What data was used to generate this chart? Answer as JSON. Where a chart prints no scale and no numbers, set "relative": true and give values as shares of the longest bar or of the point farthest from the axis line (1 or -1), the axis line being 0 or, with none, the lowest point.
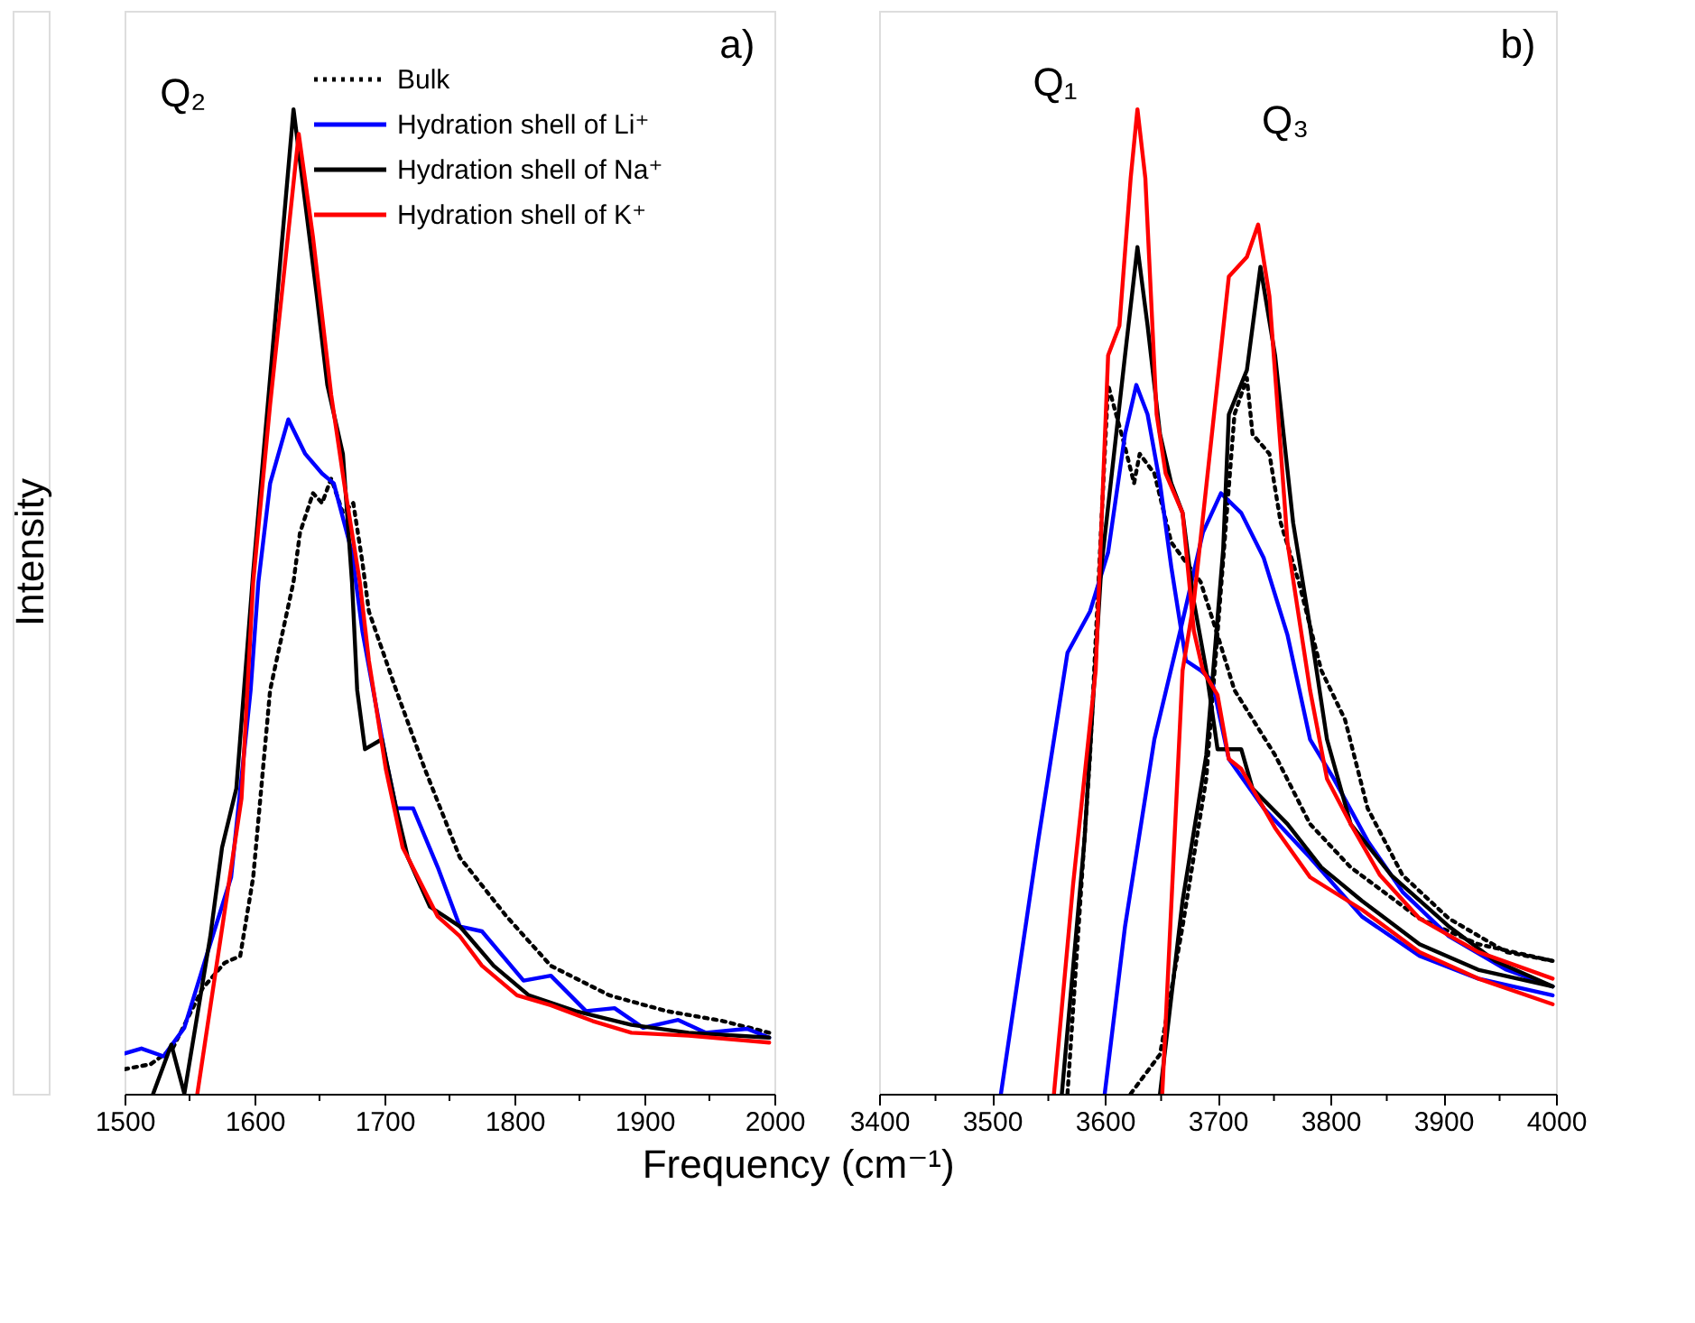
{
  "chart_data": [
    {
      "type": "line",
      "relative": true,
      "ylabel": "Intensity",
      "tick_labels": "x",
      "legend": "top right",
      "xlim": [
        1500,
        2000
      ],
      "xticks": [
        1500,
        {
          "value": 1550,
          "label": null
        },
        1600,
        {
          "value": 1650,
          "label": null
        },
        1700,
        {
          "value": 1750,
          "label": null
        },
        1800,
        {
          "value": 1850,
          "label": null
        },
        1900,
        {
          "value": 1950,
          "label": null
        },
        2000
      ],
      "annotations": [
        "a)",
        "Q₂"
      ],
      "series": [
        {
          "name": "Bulk",
          "color": "#000000",
          "line_style": "dotted",
          "x": [
            1500,
            1520,
            1537,
            1560,
            1577,
            1589,
            1599,
            1612,
            1630,
            1635,
            1645,
            1652,
            1659,
            1668,
            1676,
            1683,
            1688,
            1709,
            1731,
            1758,
            1794,
            1828,
            1873,
            1917,
            1960,
            1996
          ],
          "values": [
            0.025,
            0.03,
            0.046,
            0.107,
            0.133,
            0.14,
            0.22,
            0.41,
            0.52,
            0.57,
            0.61,
            0.6,
            0.625,
            0.59,
            0.6,
            0.54,
            0.49,
            0.41,
            0.33,
            0.24,
            0.18,
            0.13,
            0.1,
            0.084,
            0.074,
            0.062
          ]
        },
        {
          "name": "Hydration shell of Li⁺",
          "color": "#0000ff",
          "line_style": "solid",
          "x": [
            1500,
            1513,
            1530,
            1546,
            1563,
            1582,
            1597,
            1603,
            1612,
            1626,
            1639,
            1652,
            1661,
            1675,
            1683,
            1701,
            1709,
            1722,
            1741,
            1758,
            1775,
            1807,
            1828,
            1855,
            1877,
            1899,
            1926,
            1947,
            1979,
            1996
          ],
          "values": [
            0.041,
            0.046,
            0.038,
            0.067,
            0.14,
            0.22,
            0.41,
            0.52,
            0.62,
            0.685,
            0.65,
            0.63,
            0.62,
            0.55,
            0.47,
            0.34,
            0.29,
            0.29,
            0.23,
            0.17,
            0.165,
            0.115,
            0.12,
            0.084,
            0.087,
            0.067,
            0.075,
            0.062,
            0.066,
            0.057
          ]
        },
        {
          "name": "Hydration shell of Na⁺",
          "color": "#000000",
          "line_style": "solid",
          "x": [
            1522,
            1536,
            1546,
            1566,
            1575,
            1586,
            1599,
            1630,
            1648,
            1656,
            1668,
            1675,
            1679,
            1685,
            1698,
            1709,
            1718,
            1735,
            1758,
            1784,
            1811,
            1847,
            1890,
            1934,
            1996
          ],
          "values": [
            0,
            0.05,
            0,
            0.16,
            0.25,
            0.31,
            0.53,
            1.0,
            0.81,
            0.72,
            0.65,
            0.52,
            0.41,
            0.35,
            0.36,
            0.29,
            0.24,
            0.19,
            0.17,
            0.13,
            0.1,
            0.084,
            0.07,
            0.062,
            0.057
          ]
        },
        {
          "name": "Hydration shell of K⁺",
          "color": "#ff0000",
          "line_style": "solid",
          "x": [
            1556,
            1573,
            1590,
            1599,
            1612,
            1634,
            1645,
            1659,
            1669,
            1681,
            1688,
            1701,
            1714,
            1718,
            1741,
            1758,
            1775,
            1802,
            1828,
            1860,
            1890,
            1934,
            1996
          ],
          "values": [
            0,
            0.15,
            0.3,
            0.52,
            0.7,
            0.975,
            0.87,
            0.71,
            0.62,
            0.52,
            0.44,
            0.33,
            0.25,
            0.24,
            0.18,
            0.16,
            0.13,
            0.1,
            0.09,
            0.074,
            0.062,
            0.059,
            0.052
          ]
        }
      ]
    },
    {
      "type": "line",
      "relative": true,
      "xlabel": "Frequency (cm⁻¹)",
      "tick_labels": "x",
      "xlim": [
        3400,
        4000
      ],
      "xticks": [
        3400,
        {
          "value": 3450,
          "label": null
        },
        3500,
        {
          "value": 3550,
          "label": null
        },
        3600,
        {
          "value": 3650,
          "label": null
        },
        3700,
        {
          "value": 3750,
          "label": null
        },
        3800,
        {
          "value": 3850,
          "label": null
        },
        3900,
        {
          "value": 3950,
          "label": null
        },
        4000
      ],
      "annotations": [
        "b)",
        "Q₁",
        "Q₃"
      ],
      "series": [
        {
          "color": "#000000",
          "line_style": "dotted",
          "x": [
            3567,
            3587,
            3603,
            3618,
            3626,
            3631,
            3644,
            3659,
            3685,
            3700,
            3715,
            3751,
            3782,
            3818,
            3879,
            3931,
            3997
          ],
          "values": [
            0,
            0.344,
            0.72,
            0.657,
            0.62,
            0.65,
            0.63,
            0.56,
            0.52,
            0.466,
            0.41,
            0.344,
            0.274,
            0.23,
            0.178,
            0.152,
            0.135
          ]
        },
        {
          "color": "#000000",
          "line_style": "dotted",
          "x": [
            3623,
            3649,
            3669,
            3690,
            3715,
            3726,
            3731,
            3746,
            3756,
            3772,
            3792,
            3813,
            3833,
            3864,
            3905,
            3956,
            3997
          ],
          "values": [
            0,
            0.04,
            0.17,
            0.32,
            0.69,
            0.727,
            0.67,
            0.65,
            0.58,
            0.52,
            0.43,
            0.38,
            0.29,
            0.222,
            0.178,
            0.144,
            0.135
          ]
        },
        {
          "color": "#0000ff",
          "line_style": "solid",
          "x": [
            3508,
            3541,
            3567,
            3587,
            3603,
            3618,
            3628,
            3638,
            3649,
            3659,
            3672,
            3685,
            3695,
            3710,
            3741,
            3782,
            3828,
            3879,
            3931,
            3997
          ],
          "values": [
            0,
            0.257,
            0.448,
            0.49,
            0.55,
            0.67,
            0.72,
            0.69,
            0.62,
            0.535,
            0.44,
            0.43,
            0.42,
            0.34,
            0.29,
            0.24,
            0.18,
            0.14,
            0.117,
            0.1
          ]
        },
        {
          "color": "#0000ff",
          "line_style": "solid",
          "x": [
            3600,
            3618,
            3644,
            3669,
            3687,
            3703,
            3721,
            3741,
            3762,
            3782,
            3803,
            3833,
            3864,
            3905,
            3956,
            3997
          ],
          "values": [
            0,
            0.17,
            0.36,
            0.48,
            0.57,
            0.61,
            0.59,
            0.544,
            0.466,
            0.36,
            0.32,
            0.257,
            0.205,
            0.16,
            0.126,
            0.109
          ]
        },
        {
          "color": "#000000",
          "line_style": "solid",
          "x": [
            3562,
            3582,
            3597,
            3618,
            3629,
            3638,
            3649,
            3659,
            3669,
            3679,
            3690,
            3700,
            3721,
            3731,
            3762,
            3792,
            3828,
            3879,
            3931,
            3997
          ],
          "values": [
            0,
            0.257,
            0.535,
            0.75,
            0.86,
            0.78,
            0.67,
            0.62,
            0.59,
            0.5,
            0.43,
            0.35,
            0.35,
            0.31,
            0.274,
            0.23,
            0.196,
            0.152,
            0.126,
            0.109
          ]
        },
        {
          "color": "#000000",
          "line_style": "solid",
          "x": [
            3649,
            3669,
            3690,
            3705,
            3710,
            3726,
            3738,
            3751,
            3767,
            3782,
            3797,
            3818,
            3854,
            3905,
            3946,
            3997
          ],
          "values": [
            0,
            0.196,
            0.344,
            0.553,
            0.69,
            0.735,
            0.84,
            0.75,
            0.58,
            0.474,
            0.36,
            0.274,
            0.222,
            0.17,
            0.135,
            0.109
          ]
        },
        {
          "color": "#ff0000",
          "line_style": "solid",
          "x": [
            3555,
            3572,
            3592,
            3603,
            3613,
            3623,
            3629,
            3636,
            3646,
            3654,
            3669,
            3679,
            3687,
            3700,
            3710,
            3721,
            3751,
            3782,
            3828,
            3879,
            3931,
            3997
          ],
          "values": [
            0,
            0.213,
            0.43,
            0.75,
            0.78,
            0.93,
            1.0,
            0.93,
            0.69,
            0.63,
            0.59,
            0.47,
            0.43,
            0.405,
            0.34,
            0.33,
            0.27,
            0.22,
            0.187,
            0.144,
            0.117,
            0.091
          ]
        },
        {
          "color": "#ff0000",
          "line_style": "solid",
          "x": [
            3651,
            3669,
            3679,
            3695,
            3710,
            3726,
            3736,
            3746,
            3762,
            3782,
            3797,
            3818,
            3844,
            3879,
            3931,
            3997
          ],
          "values": [
            0,
            0.43,
            0.5,
            0.67,
            0.83,
            0.85,
            0.883,
            0.81,
            0.56,
            0.41,
            0.32,
            0.274,
            0.222,
            0.178,
            0.144,
            0.117
          ]
        }
      ]
    }
  ]
}
